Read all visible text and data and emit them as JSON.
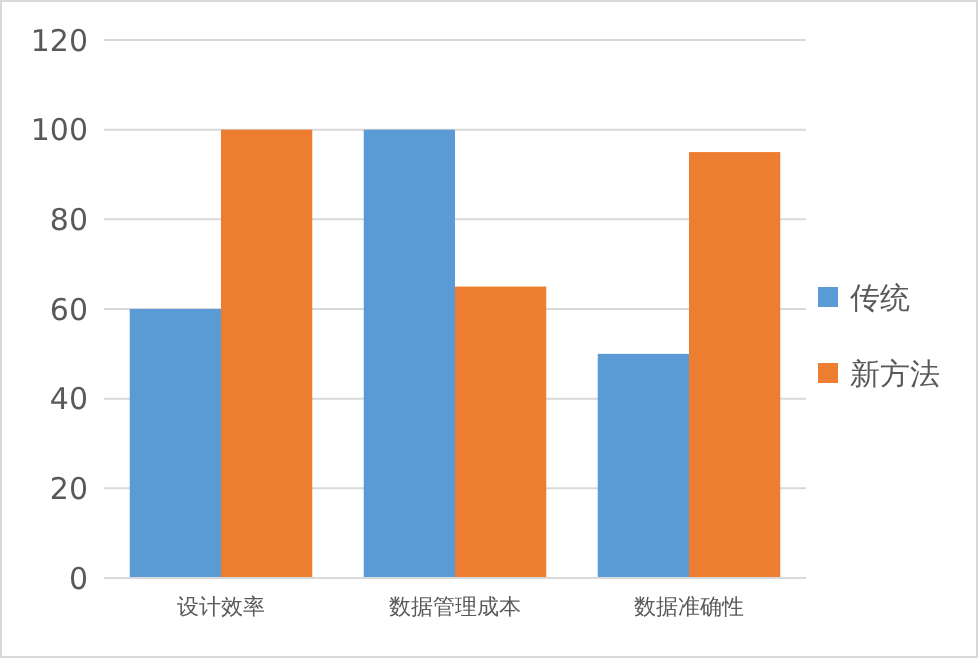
{
  "chart_data": {
    "type": "bar",
    "categories": [
      "设计效率",
      "数据管理成本",
      "数据准确性"
    ],
    "series": [
      {
        "name": "传统",
        "color": "#5b9bd5",
        "values": [
          60,
          100,
          50
        ]
      },
      {
        "name": "新方法",
        "color": "#ed7d31",
        "values": [
          100,
          65,
          95
        ]
      }
    ],
    "ylim": [
      0,
      120
    ],
    "yticks": [
      0,
      20,
      40,
      60,
      80,
      100,
      120
    ],
    "grid": "y",
    "legend": "right"
  }
}
